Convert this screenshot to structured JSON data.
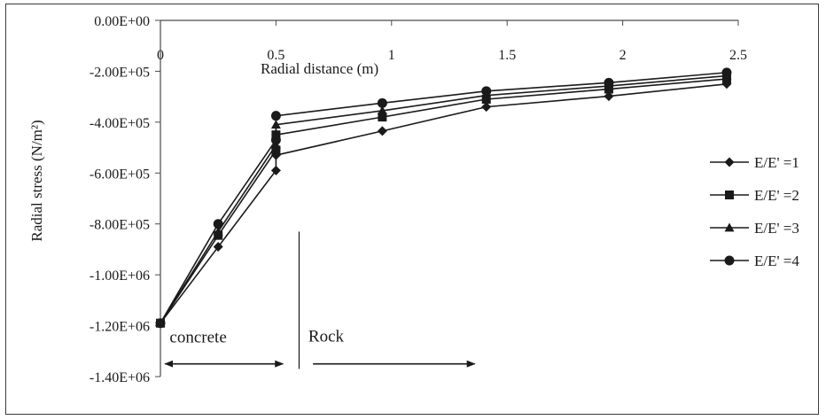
{
  "chart_data": {
    "type": "line",
    "xlabel": "Radial distance (m)",
    "ylabel": "Radial stress (N/m²)",
    "xlim": [
      0,
      2.5
    ],
    "ylim": [
      -1400000,
      0
    ],
    "x_ticks": [
      0,
      0.5,
      1,
      1.5,
      2,
      2.5
    ],
    "x_tick_labels": [
      "0",
      "0.5",
      "1",
      "1.5",
      "2",
      "2.5"
    ],
    "y_ticks": [
      0,
      -200000,
      -400000,
      -600000,
      -800000,
      -1000000,
      -1200000,
      -1400000
    ],
    "y_tick_labels": [
      "0.00E+00",
      "-2.00E+05",
      "-4.00E+05",
      "-6.00E+05",
      "-8.00E+05",
      "-1.00E+06",
      "-1.20E+06",
      "-1.40E+06"
    ],
    "grid": false,
    "x_axis_position": "top",
    "legend_position": "right",
    "series": [
      {
        "name": "E/E' =1",
        "marker": "diamond",
        "points": [
          [
            0,
            -1190000
          ],
          [
            0.25,
            -890000
          ],
          [
            0.5,
            -590000
          ],
          [
            0.5,
            -530000
          ],
          [
            0.96,
            -435000
          ],
          [
            1.41,
            -340000
          ],
          [
            1.94,
            -298000
          ],
          [
            2.45,
            -250000
          ]
        ]
      },
      {
        "name": "E/E' =2",
        "marker": "square",
        "points": [
          [
            0,
            -1190000
          ],
          [
            0.25,
            -845000
          ],
          [
            0.5,
            -510000
          ],
          [
            0.5,
            -450000
          ],
          [
            0.96,
            -380000
          ],
          [
            1.41,
            -310000
          ],
          [
            1.94,
            -270000
          ],
          [
            2.45,
            -230000
          ]
        ]
      },
      {
        "name": "E/E' =3",
        "marker": "triangle",
        "points": [
          [
            0,
            -1190000
          ],
          [
            0.25,
            -830000
          ],
          [
            0.5,
            -490000
          ],
          [
            0.5,
            -410000
          ],
          [
            0.96,
            -355000
          ],
          [
            1.41,
            -295000
          ],
          [
            1.94,
            -258000
          ],
          [
            2.45,
            -218000
          ]
        ]
      },
      {
        "name": "E/E' =4",
        "marker": "circle",
        "points": [
          [
            0,
            -1190000
          ],
          [
            0.25,
            -800000
          ],
          [
            0.5,
            -470000
          ],
          [
            0.5,
            -375000
          ],
          [
            0.96,
            -325000
          ],
          [
            1.41,
            -278000
          ],
          [
            1.94,
            -245000
          ],
          [
            2.45,
            -205000
          ]
        ]
      }
    ],
    "annotations": {
      "concrete_label": "concrete",
      "rock_label": "Rock",
      "concrete_span": [
        0.02,
        0.53
      ],
      "rock_span": [
        0.66,
        1.36
      ],
      "arrow_y": -1350000,
      "divider_x": 0.6,
      "divider_y": [
        -830000,
        -1370000
      ]
    }
  }
}
